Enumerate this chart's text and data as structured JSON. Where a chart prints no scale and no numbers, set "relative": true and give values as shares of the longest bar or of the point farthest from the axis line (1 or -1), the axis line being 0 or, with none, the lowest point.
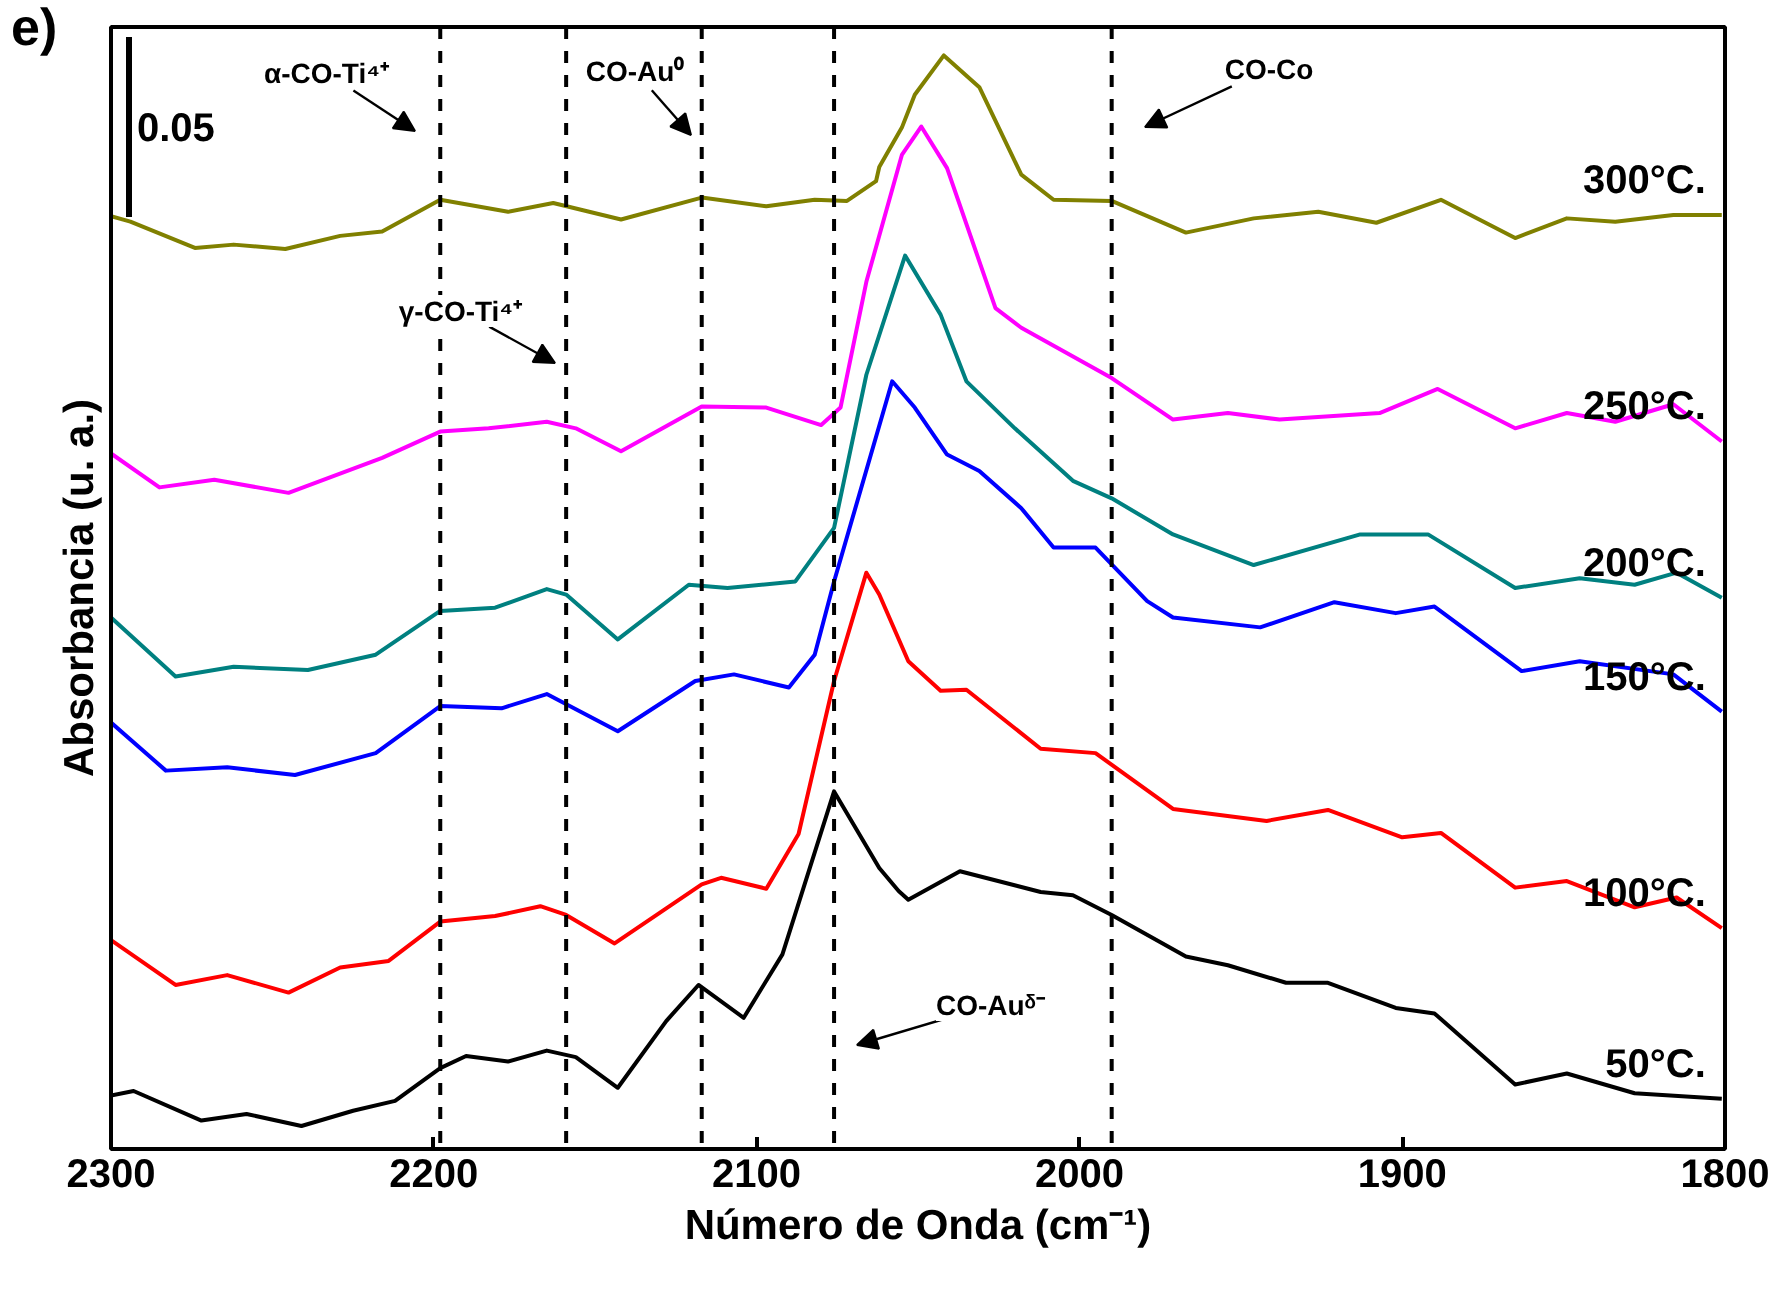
{
  "chart_data": {
    "type": "line",
    "title": "e)",
    "xlabel": "Número de Onda (cm⁻¹)",
    "ylabel": "Absorbancia (u. a.)",
    "relative": true,
    "grid": false,
    "line_style": "solid",
    "marker": "none",
    "xlim": [
      2300,
      1800
    ],
    "xticks": [
      2300,
      2200,
      2100,
      2000,
      1900,
      1800
    ],
    "series": [
      {
        "name": "300°C.",
        "color": "#808000",
        "x": [
          2300,
          2294,
          2274,
          2262,
          2246,
          2229,
          2216,
          2198,
          2177,
          2163,
          2142,
          2117,
          2097,
          2082,
          2072,
          2063,
          2062,
          2055,
          2051,
          2042,
          2031,
          2018,
          2008,
          1990,
          1967,
          1946,
          1926,
          1908,
          1888,
          1865,
          1849,
          1834,
          1816,
          1801
        ],
        "values": [
          0.853,
          0.848,
          0.824,
          0.827,
          0.823,
          0.835,
          0.839,
          0.868,
          0.857,
          0.865,
          0.85,
          0.87,
          0.862,
          0.868,
          0.867,
          0.885,
          0.898,
          0.934,
          0.964,
          1.0,
          0.971,
          0.891,
          0.868,
          0.867,
          0.838,
          0.851,
          0.857,
          0.847,
          0.868,
          0.833,
          0.851,
          0.848,
          0.854,
          0.854
        ]
      },
      {
        "name": "250°C.",
        "color": "#ff00ff",
        "x": [
          2300,
          2285,
          2268,
          2245,
          2216,
          2198,
          2183,
          2165,
          2156,
          2142,
          2117,
          2097,
          2080,
          2074,
          2066,
          2055,
          2049,
          2041,
          2026,
          2018,
          1990,
          1971,
          1954,
          1938,
          1907,
          1889,
          1865,
          1849,
          1834,
          1816,
          1801
        ],
        "values": [
          0.636,
          0.605,
          0.612,
          0.6,
          0.632,
          0.656,
          0.659,
          0.665,
          0.659,
          0.638,
          0.679,
          0.678,
          0.662,
          0.678,
          0.793,
          0.909,
          0.935,
          0.897,
          0.769,
          0.751,
          0.705,
          0.667,
          0.673,
          0.667,
          0.673,
          0.695,
          0.659,
          0.673,
          0.665,
          0.681,
          0.647
        ]
      },
      {
        "name": "200°C.",
        "color": "#008080",
        "x": [
          2300,
          2280,
          2262,
          2239,
          2218,
          2198,
          2181,
          2165,
          2159,
          2143,
          2121,
          2109,
          2088,
          2076,
          2066,
          2054,
          2043,
          2035,
          2020,
          2002,
          1990,
          1971,
          1946,
          1913,
          1892,
          1865,
          1845,
          1828,
          1815,
          1801
        ],
        "values": [
          0.486,
          0.432,
          0.441,
          0.438,
          0.452,
          0.492,
          0.495,
          0.512,
          0.507,
          0.466,
          0.516,
          0.513,
          0.519,
          0.568,
          0.708,
          0.817,
          0.763,
          0.702,
          0.659,
          0.611,
          0.595,
          0.562,
          0.534,
          0.562,
          0.562,
          0.513,
          0.522,
          0.516,
          0.527,
          0.504
        ]
      },
      {
        "name": "150°C.",
        "color": "#0000ff",
        "x": [
          2300,
          2283,
          2264,
          2243,
          2218,
          2198,
          2179,
          2165,
          2143,
          2119,
          2107,
          2090,
          2082,
          2076,
          2058,
          2051,
          2041,
          2031,
          2018,
          2008,
          1995,
          1979,
          1971,
          1944,
          1921,
          1902,
          1890,
          1863,
          1845,
          1816,
          1801
        ],
        "values": [
          0.39,
          0.346,
          0.349,
          0.342,
          0.362,
          0.405,
          0.403,
          0.416,
          0.382,
          0.428,
          0.434,
          0.422,
          0.452,
          0.519,
          0.702,
          0.678,
          0.635,
          0.62,
          0.586,
          0.55,
          0.55,
          0.501,
          0.486,
          0.477,
          0.5,
          0.49,
          0.496,
          0.437,
          0.446,
          0.434,
          0.4
        ]
      },
      {
        "name": "100°C.",
        "color": "#ff0000",
        "x": [
          2300,
          2280,
          2264,
          2245,
          2229,
          2214,
          2198,
          2181,
          2167,
          2159,
          2144,
          2117,
          2111,
          2097,
          2087,
          2076,
          2066,
          2062,
          2053,
          2043,
          2035,
          2012,
          1995,
          1971,
          1942,
          1923,
          1900,
          1888,
          1865,
          1849,
          1828,
          1815,
          1801
        ],
        "values": [
          0.191,
          0.15,
          0.159,
          0.143,
          0.166,
          0.172,
          0.208,
          0.213,
          0.222,
          0.214,
          0.188,
          0.242,
          0.248,
          0.238,
          0.288,
          0.428,
          0.527,
          0.507,
          0.446,
          0.419,
          0.42,
          0.366,
          0.362,
          0.311,
          0.3,
          0.31,
          0.285,
          0.289,
          0.239,
          0.245,
          0.221,
          0.23,
          0.202
        ]
      },
      {
        "name": "50°C.",
        "color": "#000000",
        "x": [
          2300,
          2293,
          2272,
          2258,
          2241,
          2225,
          2212,
          2198,
          2190,
          2177,
          2165,
          2156,
          2143,
          2128,
          2118,
          2104,
          2092,
          2076,
          2062,
          2056,
          2053,
          2037,
          2012,
          2002,
          1990,
          1967,
          1954,
          1936,
          1923,
          1902,
          1890,
          1865,
          1849,
          1828,
          1801
        ],
        "values": [
          0.049,
          0.053,
          0.026,
          0.032,
          0.021,
          0.035,
          0.044,
          0.074,
          0.085,
          0.08,
          0.09,
          0.084,
          0.056,
          0.117,
          0.15,
          0.12,
          0.178,
          0.327,
          0.257,
          0.236,
          0.228,
          0.254,
          0.235,
          0.232,
          0.214,
          0.176,
          0.168,
          0.152,
          0.152,
          0.129,
          0.124,
          0.059,
          0.069,
          0.051,
          0.046
        ]
      }
    ],
    "ref_lines": [
      {
        "axis": "x",
        "value": 2198,
        "color": "#000000",
        "line_style": "dashed"
      },
      {
        "axis": "x",
        "value": 2159,
        "color": "#000000",
        "line_style": "dashed"
      },
      {
        "axis": "x",
        "value": 2117,
        "color": "#000000",
        "line_style": "dashed"
      },
      {
        "axis": "x",
        "value": 2076,
        "color": "#000000",
        "line_style": "dashed"
      },
      {
        "axis": "x",
        "value": 1990,
        "color": "#000000",
        "line_style": "dashed"
      }
    ],
    "annotations": [
      "0.05",
      "α-CO-Ti⁴⁺",
      "γ-CO-Ti⁴⁺",
      "CO-Au⁰",
      "CO-Co",
      "CO-Auᵟ⁻"
    ]
  }
}
